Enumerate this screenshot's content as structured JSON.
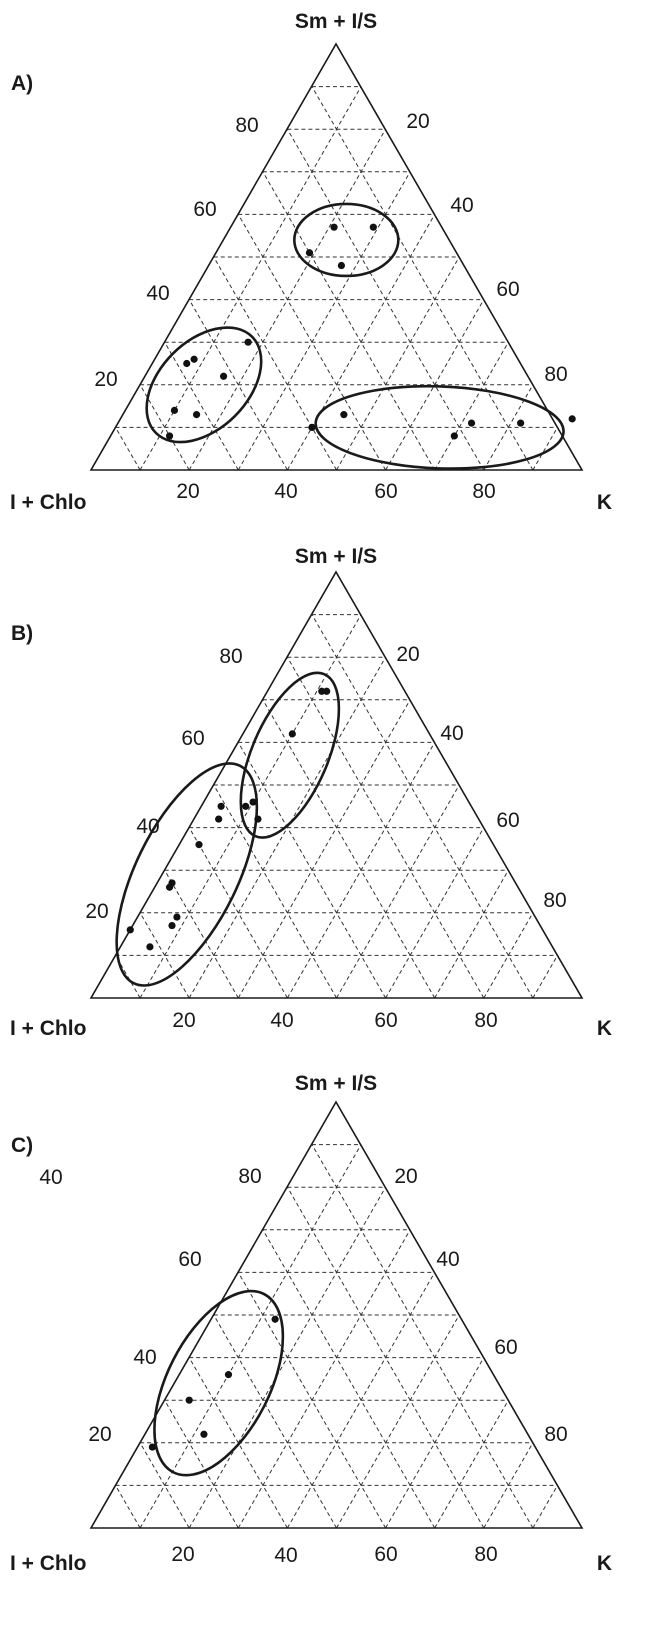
{
  "chart_data": [
    {
      "type": "scatter",
      "subtype": "ternary",
      "panel_label": "A)",
      "axes": {
        "top": "Sm + I/S",
        "left": "I + Chlo",
        "right": "K"
      },
      "range": [
        0,
        100
      ],
      "grid_step": 10,
      "ticks": {
        "bottom": [
          "20",
          "40",
          "60",
          "80"
        ],
        "left": [
          "20",
          "40",
          "60",
          "80"
        ],
        "right": [
          "20",
          "40",
          "60",
          "80"
        ]
      },
      "grid": true,
      "points": [
        {
          "K": 21,
          "SmIS": 57
        },
        {
          "K": 19,
          "SmIS": 51
        },
        {
          "K": 29,
          "SmIS": 57
        },
        {
          "K": 27,
          "SmIS": 48
        },
        {
          "K": 7,
          "SmIS": 25
        },
        {
          "K": 8,
          "SmIS": 26
        },
        {
          "K": 17,
          "SmIS": 30
        },
        {
          "K": 16,
          "SmIS": 22
        },
        {
          "K": 10,
          "SmIS": 14
        },
        {
          "K": 15,
          "SmIS": 13
        },
        {
          "K": 12,
          "SmIS": 8
        },
        {
          "K": 40,
          "SmIS": 10
        },
        {
          "K": 45,
          "SmIS": 13
        },
        {
          "K": 70,
          "SmIS": 8
        },
        {
          "K": 72,
          "SmIS": 11
        },
        {
          "K": 82,
          "SmIS": 11
        },
        {
          "K": 92,
          "SmIS": 12
        }
      ],
      "groups": [
        {
          "center": {
            "K": 25,
            "SmIS": 54
          },
          "rx": 52,
          "ry": 36,
          "angle": 0
        },
        {
          "center": {
            "K": 13,
            "SmIS": 20
          },
          "rx": 68,
          "ry": 44,
          "angle": -45
        },
        {
          "center": {
            "K": 66,
            "SmIS": 10
          },
          "rx": 124,
          "ry": 41,
          "angle": 2
        }
      ]
    },
    {
      "type": "scatter",
      "subtype": "ternary",
      "panel_label": "B)",
      "axes": {
        "top": "Sm + I/S",
        "left": "I + Chlo",
        "right": "K"
      },
      "range": [
        0,
        100
      ],
      "grid_step": 10,
      "ticks": {
        "bottom": [
          "20",
          "40",
          "60",
          "80"
        ],
        "left": [
          "20",
          "40",
          "60",
          "80"
        ],
        "right": [
          "20",
          "40",
          "60",
          "80"
        ]
      },
      "grid": true,
      "points": [
        {
          "K": 11,
          "SmIS": 72
        },
        {
          "K": 12,
          "SmIS": 72
        },
        {
          "K": 10,
          "SmIS": 62
        },
        {
          "K": 10,
          "SmIS": 46
        },
        {
          "K": 9,
          "SmIS": 45
        },
        {
          "K": 13,
          "SmIS": 42
        },
        {
          "K": 4,
          "SmIS": 45
        },
        {
          "K": 5,
          "SmIS": 42
        },
        {
          "K": 4,
          "SmIS": 36
        },
        {
          "K": 3,
          "SmIS": 27
        },
        {
          "K": 3,
          "SmIS": 26
        },
        {
          "K": 8,
          "SmIS": 19
        },
        {
          "K": 8,
          "SmIS": 17
        },
        {
          "K": 0,
          "SmIS": 16
        },
        {
          "K": 6,
          "SmIS": 12
        }
      ],
      "groups": [
        {
          "center": {
            "K": 12,
            "SmIS": 57
          },
          "rx": 88,
          "ry": 38,
          "angle": -67
        },
        {
          "center": {
            "K": 5,
            "SmIS": 29
          },
          "rx": 121,
          "ry": 51,
          "angle": -64
        }
      ]
    },
    {
      "type": "scatter",
      "subtype": "ternary",
      "panel_label": "C)",
      "axes": {
        "top": "Sm + I/S",
        "left": "I + Chlo",
        "right": "K"
      },
      "range": [
        0,
        100
      ],
      "grid_step": 10,
      "ticks": {
        "bottom": [
          "20",
          "40",
          "60",
          "80"
        ],
        "left": [
          "20",
          "40",
          "60",
          "80"
        ],
        "right": [
          "20",
          "40",
          "60",
          "80"
        ]
      },
      "extra_label": "40",
      "grid": true,
      "points": [
        {
          "K": 13,
          "SmIS": 49
        },
        {
          "K": 10,
          "SmIS": 36
        },
        {
          "K": 5,
          "SmIS": 30
        },
        {
          "K": 3,
          "SmIS": 19
        },
        {
          "K": 12,
          "SmIS": 22
        }
      ],
      "groups": [
        {
          "center": {
            "K": 9,
            "SmIS": 34
          },
          "rx": 100,
          "ry": 51,
          "angle": -63
        }
      ]
    }
  ]
}
